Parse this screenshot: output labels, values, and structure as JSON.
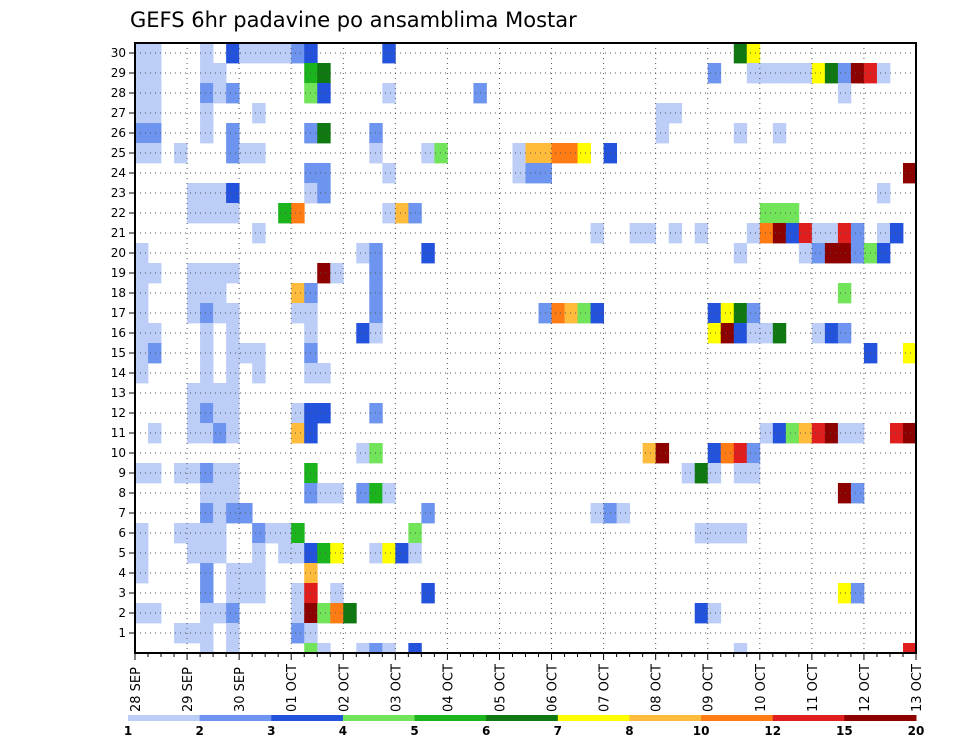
{
  "chart_data": {
    "type": "heatmap",
    "title": "GEFS 6hr padavine po ansamblima Mostar",
    "y_ticks": [
      "1",
      "2",
      "3",
      "4",
      "5",
      "6",
      "7",
      "8",
      "9",
      "10",
      "11",
      "12",
      "13",
      "14",
      "15",
      "16",
      "17",
      "18",
      "19",
      "20",
      "21",
      "22",
      "23",
      "24",
      "25",
      "26",
      "27",
      "28",
      "29",
      "30"
    ],
    "x_ticks": [
      "28 SEP",
      "29 SEP",
      "30 SEP",
      "01 OCT",
      "02 OCT",
      "03 OCT",
      "04 OCT",
      "05 OCT",
      "06 OCT",
      "07 OCT",
      "08 OCT",
      "09 OCT",
      "10 OCT",
      "11 OCT",
      "12 OCT",
      "13 OCT"
    ],
    "x_range_steps": [
      0,
      60
    ],
    "y_range": [
      0,
      30
    ],
    "grid": true,
    "colorbar": {
      "colors": [
        "#bccef8",
        "#6d94ee",
        "#2352dc",
        "#72e45a",
        "#1cb41c",
        "#107810",
        "#ffff00",
        "#ffbc3c",
        "#ff7c14",
        "#e01e1e",
        "#8c0000"
      ],
      "labels": [
        "1",
        "2",
        "3",
        "4",
        "5",
        "6",
        "7",
        "8",
        "10",
        "12",
        "15",
        "20"
      ]
    },
    "cells": [
      [
        0,
        30,
        1
      ],
      [
        1,
        30,
        1
      ],
      [
        5,
        30,
        1
      ],
      [
        7,
        30,
        3
      ],
      [
        8,
        30,
        1
      ],
      [
        9,
        30,
        1
      ],
      [
        10,
        30,
        1
      ],
      [
        11,
        30,
        1
      ],
      [
        12,
        30,
        2
      ],
      [
        13,
        30,
        3
      ],
      [
        19,
        30,
        3
      ],
      [
        46,
        30,
        6
      ],
      [
        47,
        30,
        7
      ],
      [
        0,
        29,
        1
      ],
      [
        1,
        29,
        1
      ],
      [
        5,
        29,
        1
      ],
      [
        6,
        29,
        1
      ],
      [
        13,
        29,
        5
      ],
      [
        14,
        29,
        6
      ],
      [
        44,
        29,
        2
      ],
      [
        47,
        29,
        1
      ],
      [
        48,
        29,
        1
      ],
      [
        49,
        29,
        1
      ],
      [
        50,
        29,
        1
      ],
      [
        51,
        29,
        1
      ],
      [
        52,
        29,
        7
      ],
      [
        53,
        29,
        6
      ],
      [
        54,
        29,
        2
      ],
      [
        55,
        29,
        11
      ],
      [
        56,
        29,
        10
      ],
      [
        57,
        29,
        1
      ],
      [
        0,
        28,
        1
      ],
      [
        1,
        28,
        1
      ],
      [
        5,
        28,
        2
      ],
      [
        6,
        28,
        1
      ],
      [
        7,
        28,
        2
      ],
      [
        13,
        28,
        4
      ],
      [
        14,
        28,
        3
      ],
      [
        19,
        28,
        1
      ],
      [
        26,
        28,
        2
      ],
      [
        54,
        28,
        1
      ],
      [
        0,
        27,
        1
      ],
      [
        1,
        27,
        1
      ],
      [
        5,
        27,
        1
      ],
      [
        9,
        27,
        1
      ],
      [
        40,
        27,
        1
      ],
      [
        41,
        27,
        1
      ],
      [
        0,
        26,
        2
      ],
      [
        1,
        26,
        2
      ],
      [
        5,
        26,
        1
      ],
      [
        7,
        26,
        2
      ],
      [
        13,
        26,
        2
      ],
      [
        14,
        26,
        6
      ],
      [
        18,
        26,
        2
      ],
      [
        40,
        26,
        1
      ],
      [
        46,
        26,
        1
      ],
      [
        49,
        26,
        1
      ],
      [
        0,
        25,
        1
      ],
      [
        1,
        25,
        1
      ],
      [
        3,
        25,
        1
      ],
      [
        7,
        25,
        2
      ],
      [
        8,
        25,
        1
      ],
      [
        9,
        25,
        1
      ],
      [
        18,
        25,
        1
      ],
      [
        22,
        25,
        1
      ],
      [
        23,
        25,
        4
      ],
      [
        29,
        25,
        1
      ],
      [
        30,
        25,
        8
      ],
      [
        31,
        25,
        8
      ],
      [
        32,
        25,
        9
      ],
      [
        33,
        25,
        9
      ],
      [
        34,
        25,
        7
      ],
      [
        36,
        25,
        3
      ],
      [
        13,
        24,
        2
      ],
      [
        14,
        24,
        2
      ],
      [
        19,
        24,
        1
      ],
      [
        29,
        24,
        1
      ],
      [
        30,
        24,
        2
      ],
      [
        31,
        24,
        2
      ],
      [
        59,
        24,
        11
      ],
      [
        4,
        23,
        1
      ],
      [
        5,
        23,
        1
      ],
      [
        6,
        23,
        1
      ],
      [
        7,
        23,
        3
      ],
      [
        13,
        23,
        1
      ],
      [
        14,
        23,
        2
      ],
      [
        57,
        23,
        1
      ],
      [
        4,
        22,
        1
      ],
      [
        5,
        22,
        1
      ],
      [
        6,
        22,
        1
      ],
      [
        7,
        22,
        1
      ],
      [
        11,
        22,
        5
      ],
      [
        12,
        22,
        9
      ],
      [
        19,
        22,
        1
      ],
      [
        20,
        22,
        8
      ],
      [
        21,
        22,
        2
      ],
      [
        48,
        22,
        4
      ],
      [
        49,
        22,
        4
      ],
      [
        50,
        22,
        4
      ],
      [
        9,
        21,
        1
      ],
      [
        35,
        21,
        1
      ],
      [
        38,
        21,
        1
      ],
      [
        39,
        21,
        1
      ],
      [
        41,
        21,
        1
      ],
      [
        43,
        21,
        1
      ],
      [
        47,
        21,
        1
      ],
      [
        48,
        21,
        9
      ],
      [
        49,
        21,
        11
      ],
      [
        50,
        21,
        3
      ],
      [
        51,
        21,
        10
      ],
      [
        52,
        21,
        1
      ],
      [
        53,
        21,
        1
      ],
      [
        54,
        21,
        10
      ],
      [
        55,
        21,
        2
      ],
      [
        57,
        21,
        1
      ],
      [
        58,
        21,
        3
      ],
      [
        0,
        20,
        1
      ],
      [
        17,
        20,
        1
      ],
      [
        18,
        20,
        2
      ],
      [
        22,
        20,
        3
      ],
      [
        46,
        20,
        1
      ],
      [
        51,
        20,
        1
      ],
      [
        52,
        20,
        2
      ],
      [
        53,
        20,
        11
      ],
      [
        54,
        20,
        11
      ],
      [
        55,
        20,
        2
      ],
      [
        56,
        20,
        4
      ],
      [
        57,
        20,
        3
      ],
      [
        0,
        19,
        1
      ],
      [
        1,
        19,
        1
      ],
      [
        4,
        19,
        1
      ],
      [
        5,
        19,
        1
      ],
      [
        6,
        19,
        1
      ],
      [
        7,
        19,
        1
      ],
      [
        14,
        19,
        11
      ],
      [
        15,
        19,
        1
      ],
      [
        18,
        19,
        2
      ],
      [
        0,
        18,
        1
      ],
      [
        4,
        18,
        1
      ],
      [
        5,
        18,
        1
      ],
      [
        6,
        18,
        1
      ],
      [
        12,
        18,
        8
      ],
      [
        13,
        18,
        2
      ],
      [
        18,
        18,
        2
      ],
      [
        54,
        18,
        4
      ],
      [
        0,
        17,
        1
      ],
      [
        4,
        17,
        1
      ],
      [
        5,
        17,
        2
      ],
      [
        6,
        17,
        1
      ],
      [
        7,
        17,
        1
      ],
      [
        12,
        17,
        1
      ],
      [
        13,
        17,
        1
      ],
      [
        18,
        17,
        2
      ],
      [
        31,
        17,
        2
      ],
      [
        32,
        17,
        9
      ],
      [
        33,
        17,
        8
      ],
      [
        34,
        17,
        4
      ],
      [
        35,
        17,
        3
      ],
      [
        44,
        17,
        3
      ],
      [
        45,
        17,
        7
      ],
      [
        46,
        17,
        6
      ],
      [
        47,
        17,
        2
      ],
      [
        0,
        16,
        1
      ],
      [
        1,
        16,
        1
      ],
      [
        5,
        16,
        1
      ],
      [
        7,
        16,
        1
      ],
      [
        13,
        16,
        1
      ],
      [
        17,
        16,
        3
      ],
      [
        18,
        16,
        1
      ],
      [
        44,
        16,
        7
      ],
      [
        45,
        16,
        11
      ],
      [
        46,
        16,
        3
      ],
      [
        47,
        16,
        1
      ],
      [
        48,
        16,
        1
      ],
      [
        49,
        16,
        6
      ],
      [
        52,
        16,
        1
      ],
      [
        53,
        16,
        3
      ],
      [
        54,
        16,
        2
      ],
      [
        0,
        15,
        1
      ],
      [
        1,
        15,
        2
      ],
      [
        5,
        15,
        1
      ],
      [
        7,
        15,
        1
      ],
      [
        8,
        15,
        1
      ],
      [
        9,
        15,
        1
      ],
      [
        13,
        15,
        2
      ],
      [
        56,
        15,
        3
      ],
      [
        59,
        15,
        7
      ],
      [
        0,
        14,
        1
      ],
      [
        5,
        14,
        1
      ],
      [
        7,
        14,
        1
      ],
      [
        9,
        14,
        1
      ],
      [
        13,
        14,
        1
      ],
      [
        14,
        14,
        1
      ],
      [
        4,
        13,
        1
      ],
      [
        5,
        13,
        1
      ],
      [
        6,
        13,
        1
      ],
      [
        7,
        13,
        1
      ],
      [
        4,
        12,
        1
      ],
      [
        5,
        12,
        2
      ],
      [
        6,
        12,
        1
      ],
      [
        7,
        12,
        1
      ],
      [
        12,
        12,
        1
      ],
      [
        13,
        12,
        3
      ],
      [
        14,
        12,
        3
      ],
      [
        18,
        12,
        2
      ],
      [
        1,
        11,
        1
      ],
      [
        4,
        11,
        1
      ],
      [
        5,
        11,
        1
      ],
      [
        6,
        11,
        2
      ],
      [
        7,
        11,
        1
      ],
      [
        12,
        11,
        8
      ],
      [
        13,
        11,
        3
      ],
      [
        48,
        11,
        1
      ],
      [
        49,
        11,
        3
      ],
      [
        50,
        11,
        4
      ],
      [
        51,
        11,
        8
      ],
      [
        52,
        11,
        10
      ],
      [
        53,
        11,
        11
      ],
      [
        54,
        11,
        1
      ],
      [
        55,
        11,
        1
      ],
      [
        58,
        11,
        10
      ],
      [
        59,
        11,
        11
      ],
      [
        17,
        10,
        1
      ],
      [
        18,
        10,
        4
      ],
      [
        39,
        10,
        8
      ],
      [
        40,
        10,
        11
      ],
      [
        44,
        10,
        3
      ],
      [
        45,
        10,
        9
      ],
      [
        46,
        10,
        10
      ],
      [
        47,
        10,
        2
      ],
      [
        0,
        9,
        1
      ],
      [
        1,
        9,
        1
      ],
      [
        3,
        9,
        1
      ],
      [
        4,
        9,
        1
      ],
      [
        5,
        9,
        2
      ],
      [
        6,
        9,
        1
      ],
      [
        7,
        9,
        1
      ],
      [
        13,
        9,
        5
      ],
      [
        42,
        9,
        1
      ],
      [
        43,
        9,
        6
      ],
      [
        44,
        9,
        1
      ],
      [
        46,
        9,
        1
      ],
      [
        47,
        9,
        1
      ],
      [
        5,
        8,
        1
      ],
      [
        6,
        8,
        1
      ],
      [
        7,
        8,
        1
      ],
      [
        13,
        8,
        2
      ],
      [
        14,
        8,
        1
      ],
      [
        15,
        8,
        1
      ],
      [
        17,
        8,
        2
      ],
      [
        18,
        8,
        5
      ],
      [
        19,
        8,
        1
      ],
      [
        54,
        8,
        11
      ],
      [
        55,
        8,
        2
      ],
      [
        5,
        7,
        2
      ],
      [
        6,
        7,
        1
      ],
      [
        7,
        7,
        2
      ],
      [
        8,
        7,
        2
      ],
      [
        22,
        7,
        2
      ],
      [
        35,
        7,
        1
      ],
      [
        36,
        7,
        2
      ],
      [
        37,
        7,
        1
      ],
      [
        0,
        6,
        1
      ],
      [
        3,
        6,
        1
      ],
      [
        4,
        6,
        1
      ],
      [
        5,
        6,
        1
      ],
      [
        6,
        6,
        1
      ],
      [
        9,
        6,
        2
      ],
      [
        10,
        6,
        1
      ],
      [
        11,
        6,
        1
      ],
      [
        12,
        6,
        5
      ],
      [
        21,
        6,
        4
      ],
      [
        43,
        6,
        1
      ],
      [
        44,
        6,
        1
      ],
      [
        45,
        6,
        1
      ],
      [
        46,
        6,
        1
      ],
      [
        0,
        5,
        1
      ],
      [
        4,
        5,
        1
      ],
      [
        5,
        5,
        1
      ],
      [
        6,
        5,
        1
      ],
      [
        9,
        5,
        1
      ],
      [
        11,
        5,
        1
      ],
      [
        12,
        5,
        1
      ],
      [
        13,
        5,
        3
      ],
      [
        14,
        5,
        5
      ],
      [
        15,
        5,
        7
      ],
      [
        18,
        5,
        1
      ],
      [
        19,
        5,
        7
      ],
      [
        20,
        5,
        3
      ],
      [
        21,
        5,
        1
      ],
      [
        0,
        4,
        1
      ],
      [
        5,
        4,
        2
      ],
      [
        7,
        4,
        1
      ],
      [
        8,
        4,
        1
      ],
      [
        9,
        4,
        1
      ],
      [
        13,
        4,
        8
      ],
      [
        5,
        3,
        2
      ],
      [
        7,
        3,
        1
      ],
      [
        8,
        3,
        1
      ],
      [
        9,
        3,
        1
      ],
      [
        12,
        3,
        1
      ],
      [
        13,
        3,
        10
      ],
      [
        15,
        3,
        1
      ],
      [
        22,
        3,
        3
      ],
      [
        54,
        3,
        7
      ],
      [
        55,
        3,
        2
      ],
      [
        0,
        2,
        1
      ],
      [
        1,
        2,
        1
      ],
      [
        5,
        2,
        1
      ],
      [
        6,
        2,
        1
      ],
      [
        7,
        2,
        2
      ],
      [
        12,
        2,
        1
      ],
      [
        13,
        2,
        11
      ],
      [
        14,
        2,
        4
      ],
      [
        15,
        2,
        9
      ],
      [
        16,
        2,
        6
      ],
      [
        43,
        2,
        3
      ],
      [
        44,
        2,
        1
      ],
      [
        3,
        1,
        1
      ],
      [
        4,
        1,
        1
      ],
      [
        5,
        1,
        1
      ],
      [
        7,
        1,
        1
      ],
      [
        12,
        1,
        2
      ],
      [
        13,
        1,
        1
      ],
      [
        5,
        0,
        1
      ],
      [
        7,
        0,
        1
      ],
      [
        13,
        0,
        4
      ],
      [
        14,
        0,
        1
      ],
      [
        17,
        0,
        1
      ],
      [
        18,
        0,
        2
      ],
      [
        19,
        0,
        1
      ],
      [
        21,
        0,
        3
      ],
      [
        46,
        0,
        1
      ],
      [
        59,
        0,
        10
      ]
    ]
  }
}
